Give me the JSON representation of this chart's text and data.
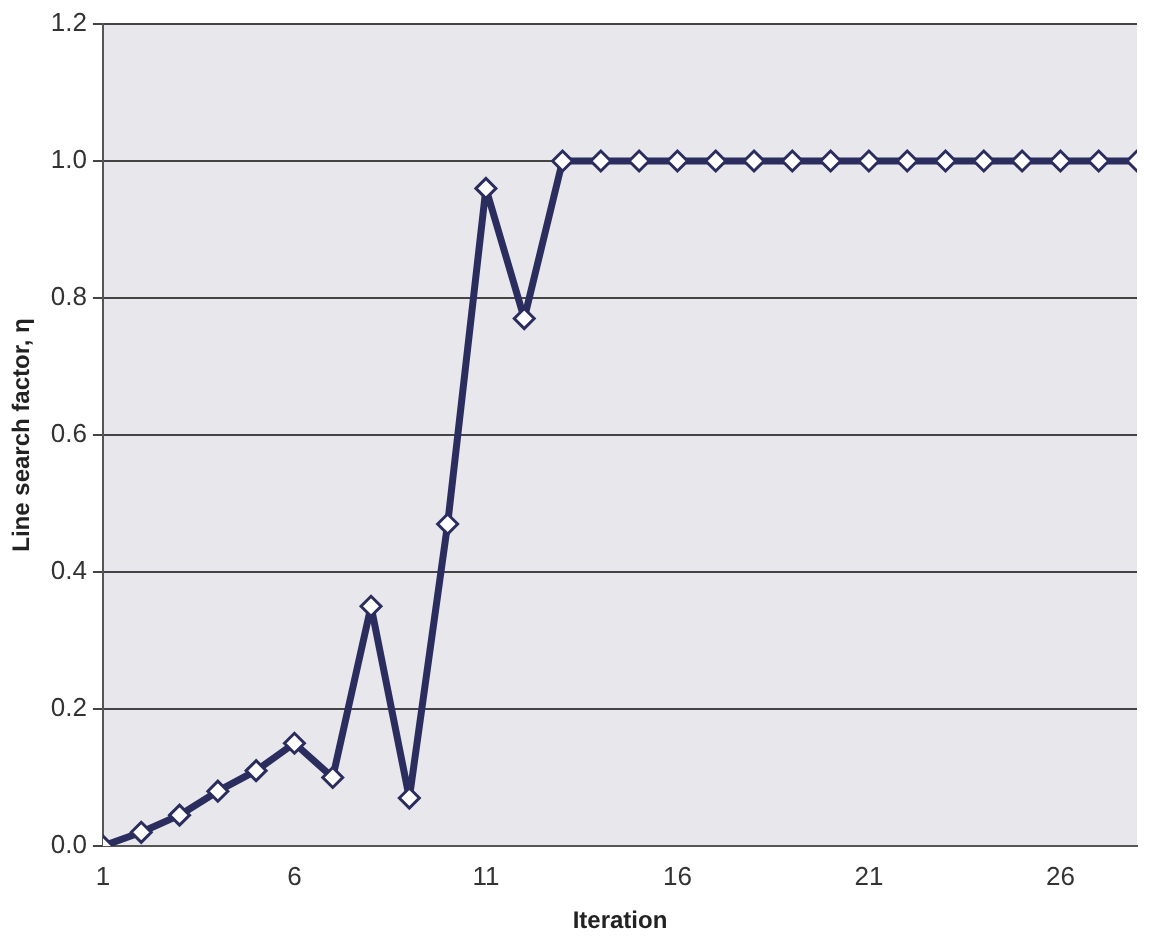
{
  "chart_data": {
    "type": "line",
    "xlabel": "Iteration",
    "ylabel": "Line search factor, η",
    "x": [
      1,
      2,
      3,
      4,
      5,
      6,
      7,
      8,
      9,
      10,
      11,
      12,
      13,
      14,
      15,
      16,
      17,
      18,
      19,
      20,
      21,
      22,
      23,
      24,
      25,
      26,
      27,
      28
    ],
    "series": [
      {
        "color": "#2b2d5e",
        "values": [
          0.0,
          0.02,
          0.045,
          0.08,
          0.11,
          0.15,
          0.1,
          0.35,
          0.07,
          0.47,
          0.96,
          0.77,
          1.0,
          1.0,
          1.0,
          1.0,
          1.0,
          1.0,
          1.0,
          1.0,
          1.0,
          1.0,
          1.0,
          1.0,
          1.0,
          1.0,
          1.0,
          1.0
        ]
      }
    ],
    "xlim": [
      1,
      28
    ],
    "xticks": [
      1,
      6,
      11,
      16,
      21,
      26
    ],
    "ylim": [
      0,
      1.2
    ],
    "yticks": [
      {
        "value": 0,
        "label": "0.0"
      },
      {
        "value": 0.2,
        "label": "0.2"
      },
      {
        "value": 0.4,
        "label": "0.4"
      },
      {
        "value": 0.6,
        "label": "0.6"
      },
      {
        "value": 0.8,
        "label": "0.8"
      },
      {
        "value": 1.0,
        "label": "1.0"
      },
      {
        "value": 1.2,
        "label": "1.2"
      }
    ],
    "grid": "y",
    "legend": false,
    "marker": "diamond",
    "line_style": "solid"
  }
}
